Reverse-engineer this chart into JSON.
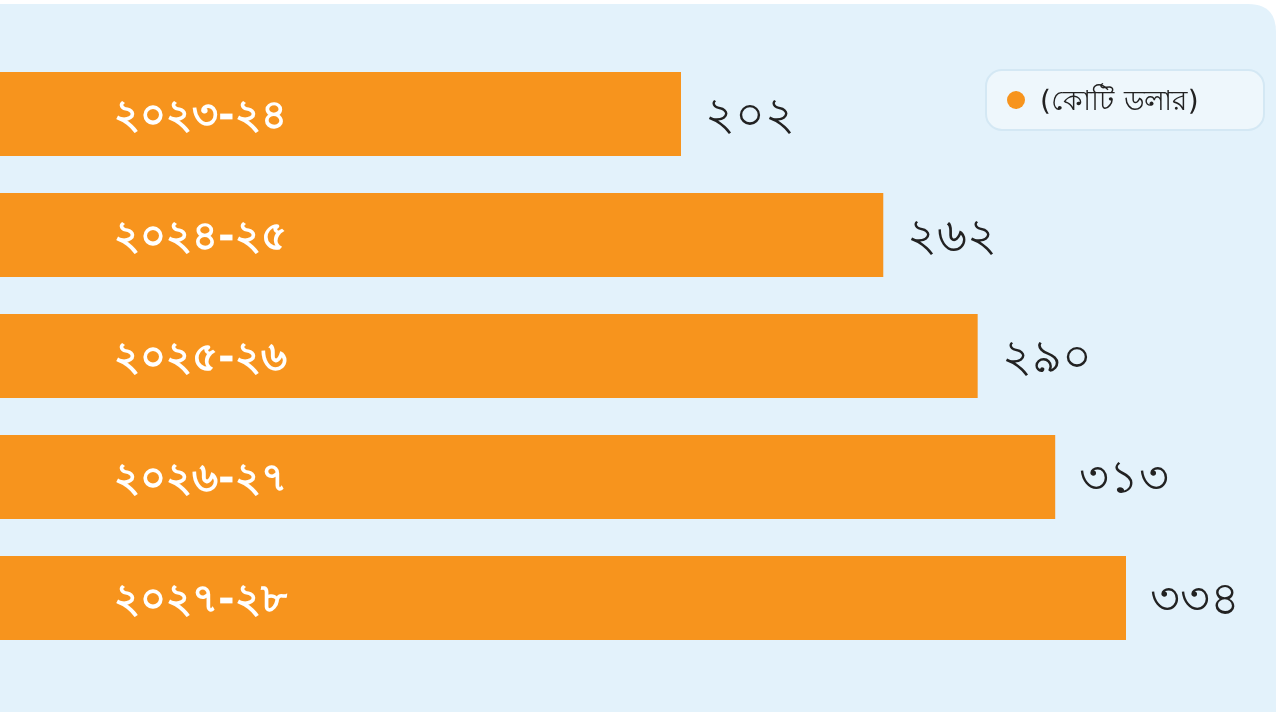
{
  "chart_data": {
    "type": "bar",
    "orientation": "horizontal",
    "legend": "top right",
    "categories": [
      "২০২৩-২৪",
      "২০২৪-২৫",
      "২০২৫-২৬",
      "২০২৬-২৭",
      "২০২৭-২৮"
    ],
    "series": [
      {
        "name": "(কোটি ডলার)",
        "color": "#f7941d",
        "values": [
          202,
          262,
          290,
          313,
          334
        ],
        "value_labels": [
          "২০২",
          "২৬২",
          "২৯০",
          "৩১৩",
          "৩৩৪"
        ]
      }
    ]
  }
}
